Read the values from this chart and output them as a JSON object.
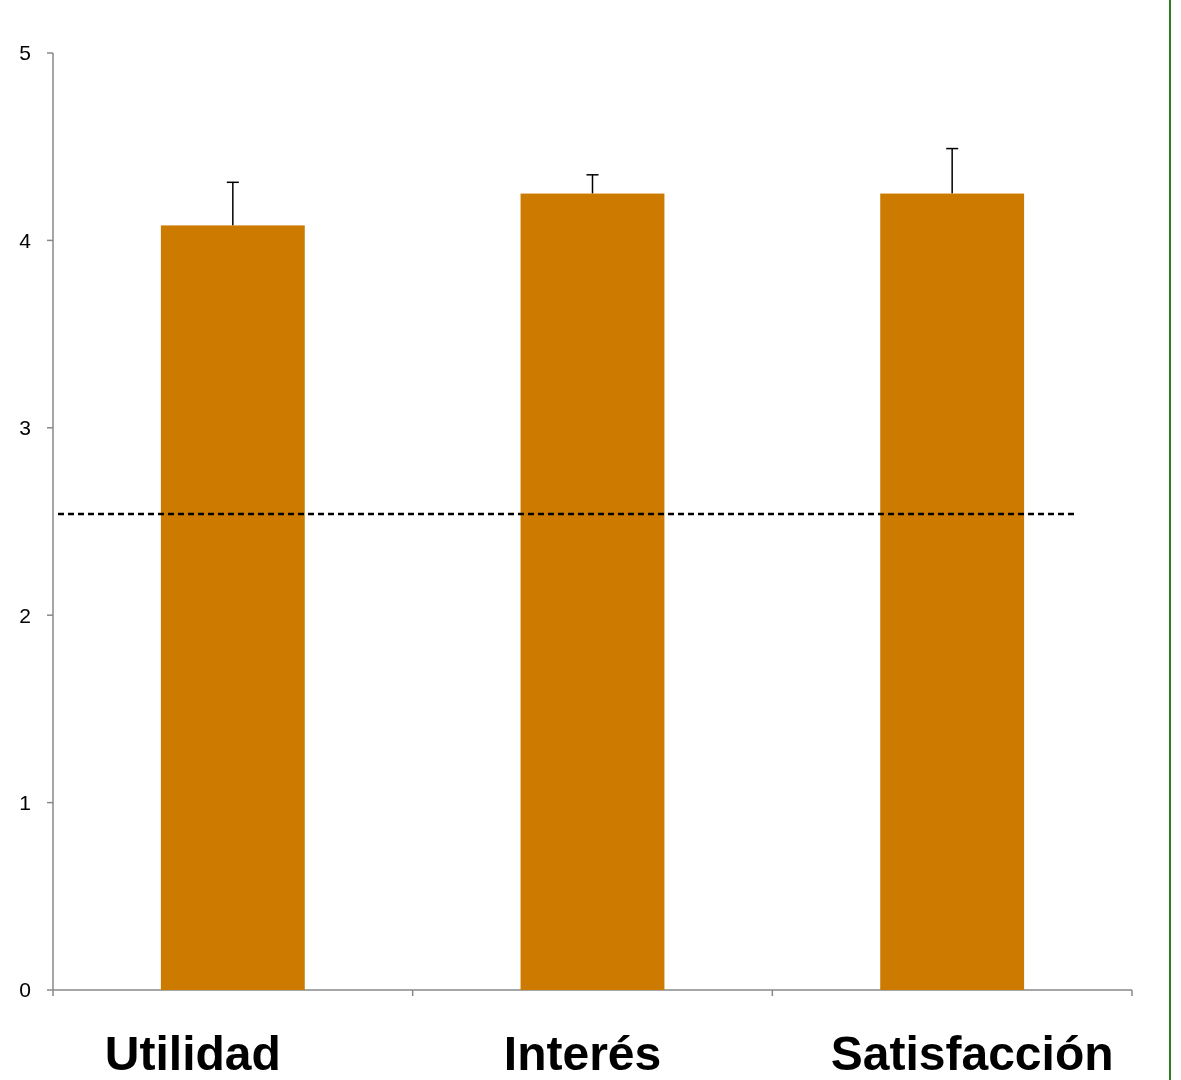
{
  "chart_data": {
    "type": "bar",
    "categories": [
      "Utilidad",
      "Interés",
      "Satisfacción"
    ],
    "values": [
      4.08,
      4.25,
      4.25
    ],
    "errors": [
      0.23,
      0.1,
      0.24
    ],
    "color": "#cc7a00",
    "ylim": [
      0,
      5
    ],
    "yticks": [
      0,
      1,
      2,
      3,
      4,
      5
    ],
    "grid": false,
    "ref_lines": [
      {
        "axis": "y",
        "value": 2.54,
        "color": "#000000",
        "line_style": "dashed"
      }
    ]
  }
}
